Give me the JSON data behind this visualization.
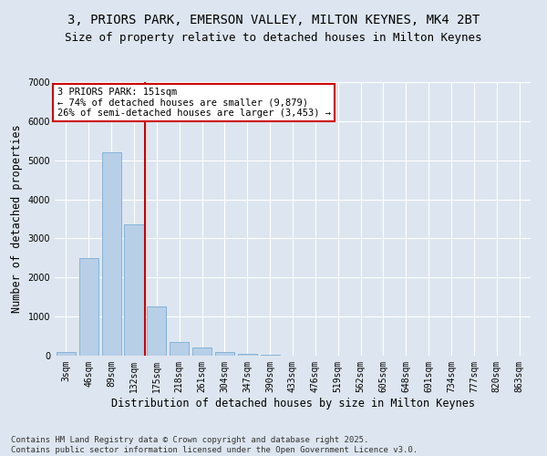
{
  "title_line1": "3, PRIORS PARK, EMERSON VALLEY, MILTON KEYNES, MK4 2BT",
  "title_line2": "Size of property relative to detached houses in Milton Keynes",
  "xlabel": "Distribution of detached houses by size in Milton Keynes",
  "ylabel": "Number of detached properties",
  "categories": [
    "3sqm",
    "46sqm",
    "89sqm",
    "132sqm",
    "175sqm",
    "218sqm",
    "261sqm",
    "304sqm",
    "347sqm",
    "390sqm",
    "433sqm",
    "476sqm",
    "519sqm",
    "562sqm",
    "605sqm",
    "648sqm",
    "691sqm",
    "734sqm",
    "777sqm",
    "820sqm",
    "863sqm"
  ],
  "values": [
    100,
    2500,
    5200,
    3350,
    1250,
    350,
    200,
    100,
    50,
    20,
    5,
    2,
    1,
    0,
    0,
    0,
    0,
    0,
    0,
    0,
    0
  ],
  "bar_color": "#b8cfe8",
  "bar_edge_color": "#7aadd4",
  "vline_color": "#cc0000",
  "annotation_text": "3 PRIORS PARK: 151sqm\n← 74% of detached houses are smaller (9,879)\n26% of semi-detached houses are larger (3,453) →",
  "annotation_box_facecolor": "#ffffff",
  "annotation_box_edgecolor": "#cc0000",
  "ylim": [
    0,
    7000
  ],
  "yticks": [
    0,
    1000,
    2000,
    3000,
    4000,
    5000,
    6000,
    7000
  ],
  "bg_color": "#dde6f0",
  "plot_bg_color": "#dde6f0",
  "grid_color": "#ffffff",
  "footer_line1": "Contains HM Land Registry data © Crown copyright and database right 2025.",
  "footer_line2": "Contains public sector information licensed under the Open Government Licence v3.0.",
  "title_fontsize": 10,
  "subtitle_fontsize": 9,
  "tick_fontsize": 7,
  "axis_label_fontsize": 8.5,
  "footer_fontsize": 6.5,
  "annotation_fontsize": 7.5,
  "vline_x_index": 3
}
